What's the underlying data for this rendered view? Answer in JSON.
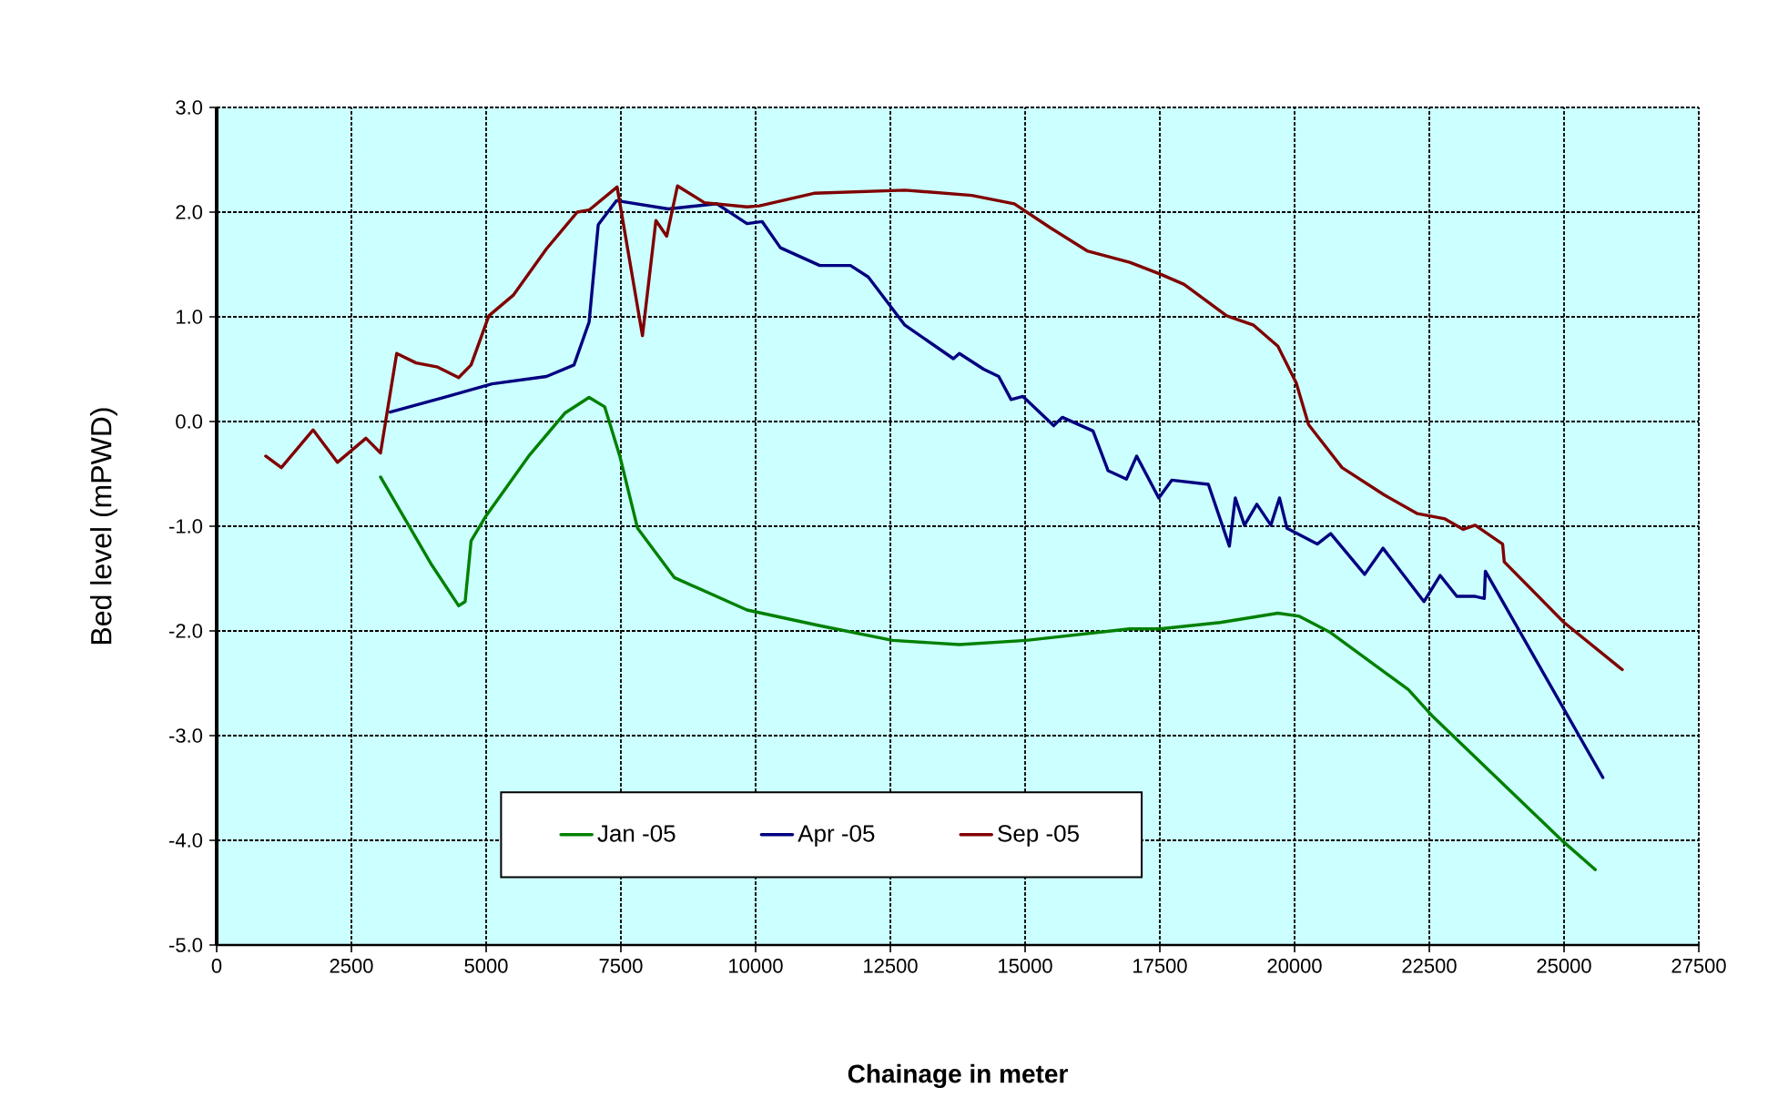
{
  "chart_data": {
    "type": "line",
    "xlabel": "Chainage in meter",
    "ylabel": "Bed level (mPWD)",
    "xlim": [
      0,
      27500
    ],
    "ylim": [
      -5,
      3
    ],
    "xticks": [
      0,
      2500,
      5000,
      7500,
      10000,
      12500,
      15000,
      17500,
      20000,
      22500,
      25000,
      27500
    ],
    "yticks": [
      {
        "value": 3,
        "label": "3.0"
      },
      {
        "value": 2,
        "label": "2.0"
      },
      {
        "value": 1,
        "label": "1.0"
      },
      {
        "value": 0,
        "label": "0.0"
      },
      {
        "value": -1,
        "label": "-1.0"
      },
      {
        "value": -2,
        "label": "-2.0"
      },
      {
        "value": -3,
        "label": "-3.0"
      },
      {
        "value": -4,
        "label": "-4.0"
      },
      {
        "value": -5,
        "label": "-5.0"
      }
    ],
    "grid": true,
    "legend": "bottom",
    "line_style": "solid",
    "series": [
      {
        "name": "Jan -05",
        "color": "#008000",
        "x": [
          3040,
          3990,
          4490,
          4610,
          4720,
          5000,
          5790,
          6460,
          6910,
          7200,
          7480,
          7810,
          8490,
          9840,
          11190,
          12540,
          13780,
          15020,
          16940,
          17500,
          18620,
          19690,
          20090,
          20650,
          22110,
          22570,
          24980,
          25580
        ],
        "values": [
          -0.53,
          -1.37,
          -1.76,
          -1.72,
          -1.14,
          -0.9,
          -0.33,
          0.08,
          0.23,
          0.14,
          -0.33,
          -1.02,
          -1.49,
          -1.8,
          -1.95,
          -2.09,
          -2.13,
          -2.09,
          -1.98,
          -1.98,
          -1.92,
          -1.83,
          -1.86,
          -2.01,
          -2.56,
          -2.82,
          -4.01,
          -4.28
        ]
      },
      {
        "name": "Apr -05",
        "color": "#000080",
        "x": [
          3220,
          4210,
          5110,
          6120,
          6630,
          6910,
          7080,
          7420,
          8380,
          9280,
          9840,
          10120,
          10460,
          11190,
          11760,
          12090,
          12770,
          13670,
          13780,
          14230,
          14510,
          14740,
          14960,
          15530,
          15690,
          16260,
          16540,
          16880,
          17070,
          17480,
          17720,
          18400,
          18790,
          18900,
          19070,
          19300,
          19560,
          19720,
          19860,
          20420,
          20670,
          21300,
          21640,
          22400,
          22700,
          23010,
          23350,
          23520,
          23540,
          25720
        ],
        "values": [
          0.09,
          0.23,
          0.36,
          0.43,
          0.54,
          0.95,
          1.88,
          2.11,
          2.03,
          2.08,
          1.89,
          1.91,
          1.66,
          1.49,
          1.49,
          1.38,
          0.92,
          0.6,
          0.65,
          0.5,
          0.43,
          0.21,
          0.24,
          -0.04,
          0.04,
          -0.09,
          -0.47,
          -0.55,
          -0.33,
          -0.73,
          -0.56,
          -0.6,
          -1.19,
          -0.73,
          -0.99,
          -0.79,
          -0.99,
          -0.73,
          -1.02,
          -1.17,
          -1.07,
          -1.46,
          -1.21,
          -1.72,
          -1.47,
          -1.67,
          -1.67,
          -1.69,
          -1.43,
          -3.4
        ]
      },
      {
        "name": "Sep -05",
        "color": "#800000",
        "x": [
          910,
          1200,
          1790,
          2240,
          2770,
          3040,
          3340,
          3700,
          4100,
          4490,
          4720,
          5050,
          5510,
          6120,
          6690,
          6910,
          7430,
          7900,
          8150,
          8350,
          8550,
          9050,
          9840,
          10070,
          11080,
          12770,
          14010,
          14800,
          15470,
          16150,
          16940,
          17500,
          17950,
          18740,
          19240,
          19690,
          20030,
          20260,
          20880,
          21660,
          22280,
          22790,
          23130,
          23350,
          23860,
          23890,
          25000,
          26080
        ],
        "values": [
          -0.33,
          -0.44,
          -0.08,
          -0.39,
          -0.16,
          -0.3,
          0.65,
          0.56,
          0.52,
          0.42,
          0.54,
          1.01,
          1.21,
          1.65,
          2.0,
          2.02,
          2.24,
          0.82,
          1.92,
          1.77,
          2.25,
          2.09,
          2.05,
          2.06,
          2.18,
          2.21,
          2.16,
          2.08,
          1.85,
          1.63,
          1.52,
          1.41,
          1.31,
          1.01,
          0.92,
          0.72,
          0.37,
          -0.03,
          -0.44,
          -0.7,
          -0.88,
          -0.93,
          -1.03,
          -0.99,
          -1.17,
          -1.34,
          -1.92,
          -2.37
        ]
      }
    ]
  }
}
